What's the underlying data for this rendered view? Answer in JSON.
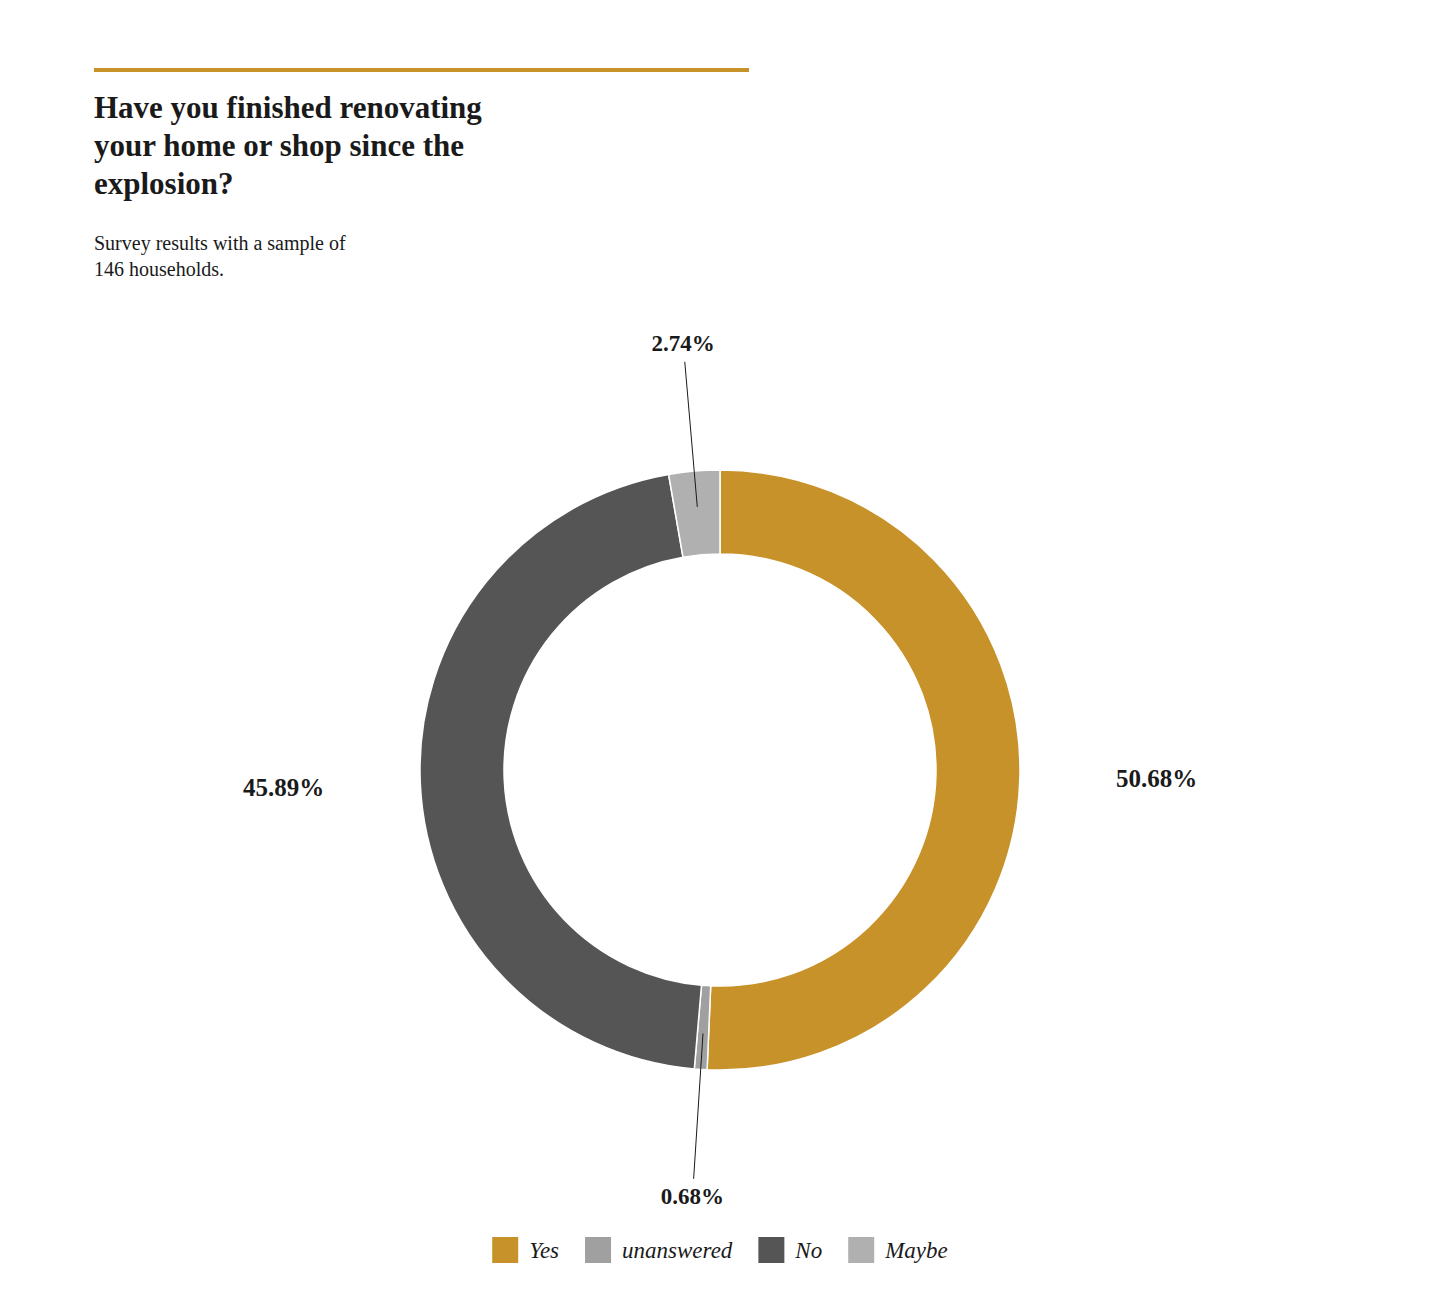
{
  "chart_data": {
    "type": "pie",
    "title": "Have you finished renovating\nyour home or shop since the\nexplosion?",
    "subtitle": "Survey results with a sample of\n146 households.",
    "categories": [
      "Yes",
      "unanswered",
      "No",
      "Maybe"
    ],
    "values": [
      50.68,
      0.68,
      45.89,
      2.74
    ],
    "value_labels": [
      "50.68%",
      "0.68%",
      "45.89%",
      "2.74%"
    ],
    "colors": [
      "#c8922a",
      "#a0a0a0",
      "#555555",
      "#b0b0b0"
    ],
    "data_labels": true,
    "legend": "bottom"
  }
}
